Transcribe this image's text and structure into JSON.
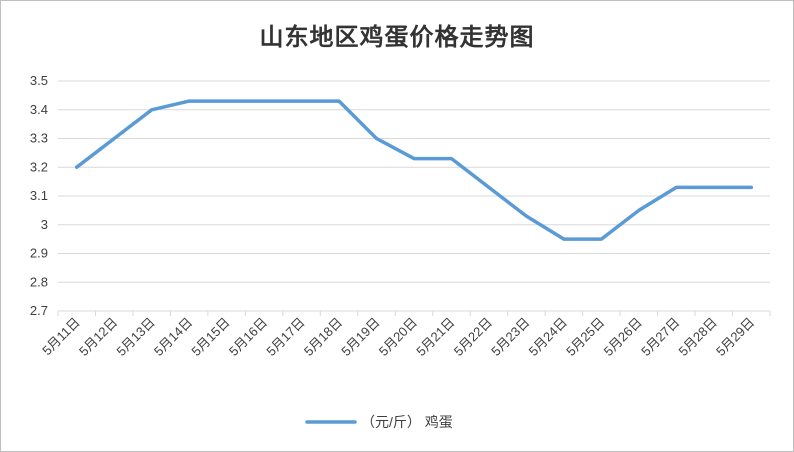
{
  "chart_data": {
    "type": "line",
    "title": "山东地区鸡蛋价格走势图",
    "xlabel": "",
    "ylabel": "",
    "categories": [
      "5月11日",
      "5月12日",
      "5月13日",
      "5月14日",
      "5月15日",
      "5月16日",
      "5月17日",
      "5月18日",
      "5月19日",
      "5月20日",
      "5月21日",
      "5月22日",
      "5月23日",
      "5月24日",
      "5月25日",
      "5月26日",
      "5月27日",
      "5月28日",
      "5月29日"
    ],
    "series": [
      {
        "name": "（元/斤） 鸡蛋",
        "color": "#5b9bd5",
        "values": [
          3.2,
          3.3,
          3.4,
          3.43,
          3.43,
          3.43,
          3.43,
          3.43,
          3.3,
          3.23,
          3.23,
          3.13,
          3.03,
          2.95,
          2.95,
          3.05,
          3.13,
          3.13,
          3.13
        ]
      }
    ],
    "ylim": [
      2.7,
      3.5
    ],
    "yticks": [
      "2.7",
      "2.8",
      "2.9",
      "3",
      "3.1",
      "3.2",
      "3.3",
      "3.4",
      "3.5"
    ],
    "grid": true,
    "legend_position": "bottom"
  }
}
